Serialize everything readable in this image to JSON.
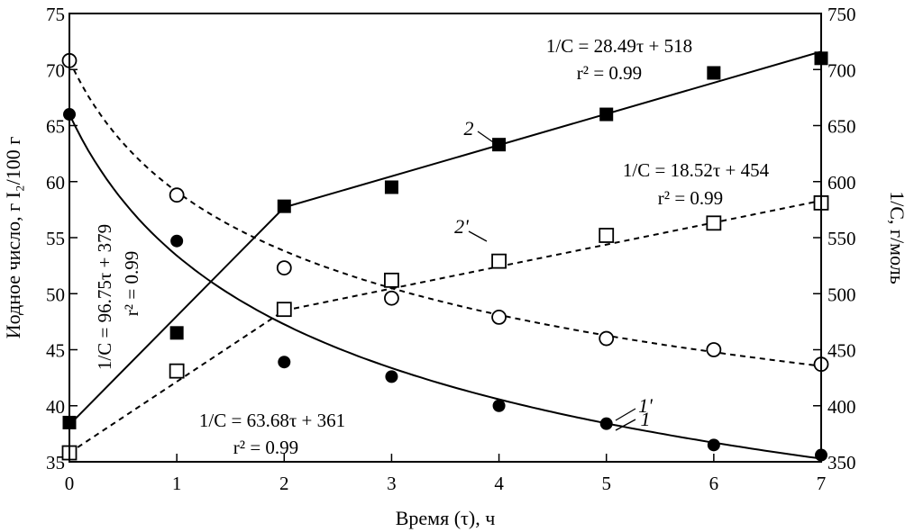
{
  "chart_data": {
    "type": "scatter",
    "title": "",
    "xlabel": "Время (τ), ч",
    "ylabel_left": "Иодное число, г I₂/100 г",
    "ylabel_right": "1/C, г/моль",
    "xlim": [
      0,
      7
    ],
    "ylim_left": [
      35,
      75
    ],
    "ylim_right": [
      350,
      750
    ],
    "x_ticks": [
      "0",
      "1",
      "2",
      "3",
      "4",
      "5",
      "6",
      "7"
    ],
    "y_ticks_left": [
      "35",
      "40",
      "45",
      "50",
      "55",
      "60",
      "65",
      "70",
      "75"
    ],
    "y_ticks_right": [
      "350",
      "400",
      "450",
      "500",
      "550",
      "600",
      "650",
      "700",
      "750"
    ],
    "grid": false,
    "series": [
      {
        "label": "1",
        "axis": "left",
        "marker": "filled-circle",
        "line": "solid-curve",
        "x": [
          0,
          1,
          2,
          3,
          4,
          5,
          6,
          7
        ],
        "y": [
          66.0,
          54.7,
          43.9,
          42.6,
          40.0,
          38.4,
          36.5,
          35.6
        ]
      },
      {
        "label": "1'",
        "axis": "left",
        "marker": "open-circle",
        "line": "dashed-curve",
        "x": [
          0,
          1,
          2,
          3,
          4,
          5,
          6,
          7
        ],
        "y": [
          70.8,
          58.8,
          52.3,
          49.6,
          47.9,
          46.0,
          45.0,
          43.7
        ]
      },
      {
        "label": "2",
        "axis": "right",
        "marker": "filled-square",
        "line": "solid",
        "x": [
          0,
          1,
          2,
          3,
          4,
          5,
          6,
          7
        ],
        "y": [
          385,
          465,
          578,
          595,
          633,
          660,
          697,
          710
        ]
      },
      {
        "label": "2'",
        "axis": "right",
        "marker": "open-square",
        "line": "dashed",
        "x": [
          0,
          1,
          2,
          3,
          4,
          5,
          6,
          7
        ],
        "y": [
          358,
          431,
          486,
          512,
          529,
          552,
          563,
          581
        ]
      }
    ],
    "fit_lines": [
      {
        "series": "2",
        "axis": "right",
        "style": "solid",
        "x0": 0,
        "y0": 383,
        "x1": 2,
        "y1": 577
      },
      {
        "series": "2",
        "axis": "right",
        "style": "solid",
        "x0": 2,
        "y0": 577,
        "x1": 7,
        "y1": 716
      },
      {
        "series": "2'",
        "axis": "right",
        "style": "dashed",
        "x0": 0,
        "y0": 358,
        "x1": 2,
        "y1": 485
      },
      {
        "series": "2'",
        "axis": "right",
        "style": "dashed",
        "x0": 2,
        "y0": 485,
        "x1": 7,
        "y1": 583
      }
    ],
    "annotations": [
      {
        "text": "1/C = 28.49τ + 518",
        "r2": "r² = 0.99"
      },
      {
        "text": "1/C = 18.52τ + 454",
        "r2": "r² = 0.99"
      },
      {
        "text": "1/C = 96.75τ + 379",
        "r2": "r² = 0.99"
      },
      {
        "text": "1/C = 63.68τ + 361",
        "r2": "r² = 0.99"
      }
    ]
  }
}
